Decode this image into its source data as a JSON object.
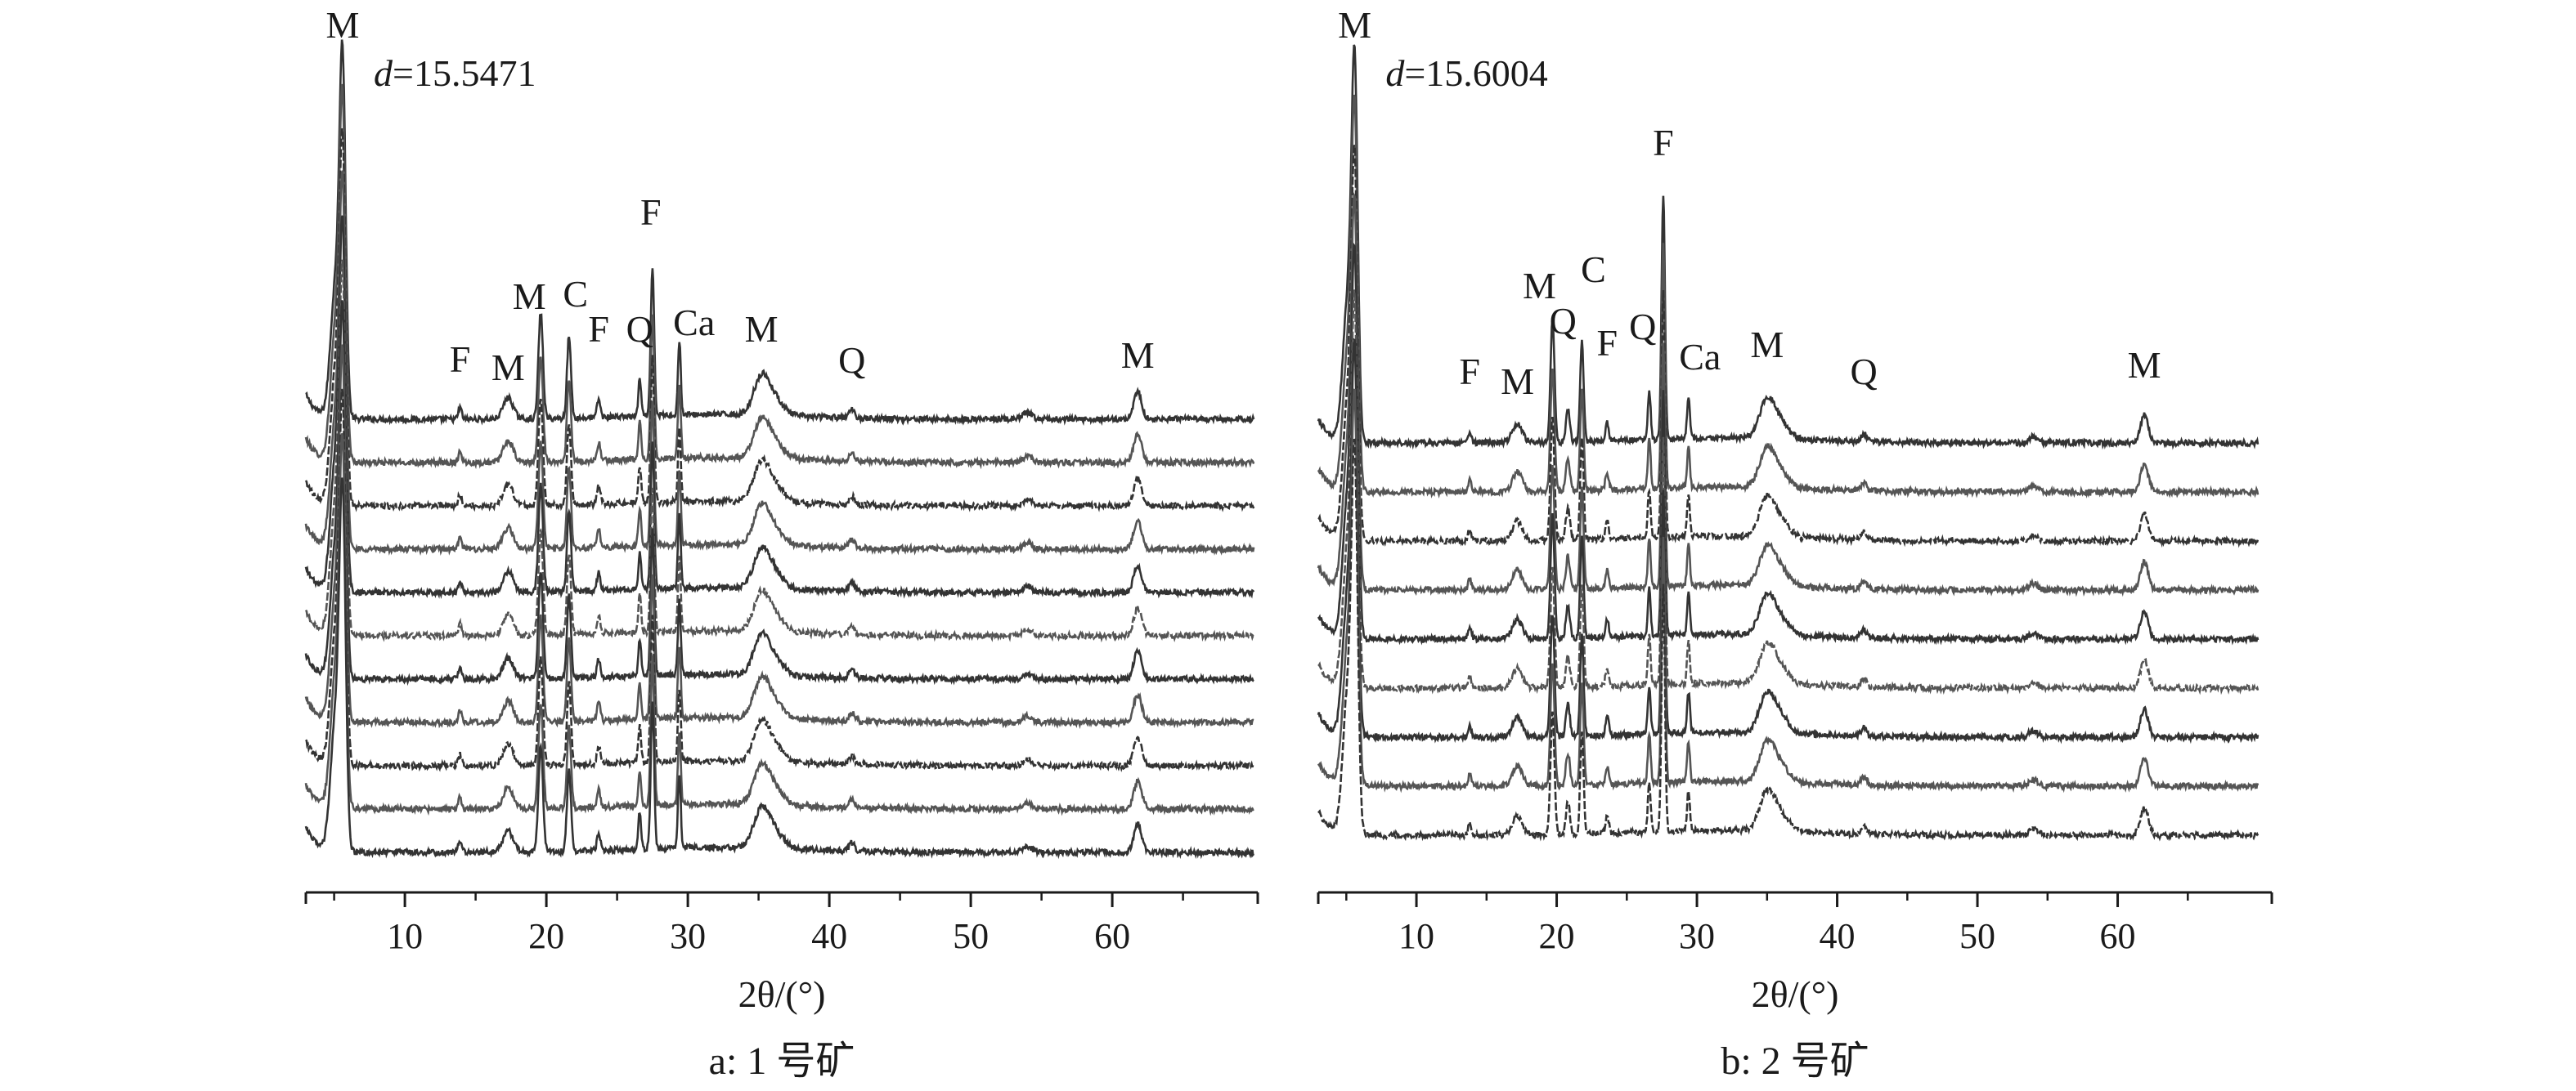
{
  "figure": {
    "panels": [
      {
        "id": "a",
        "caption": "a: 1 号矿",
        "d_label_italic": "d",
        "d_label_value": "=15.5471",
        "xlabel": "2θ/(°)"
      },
      {
        "id": "b",
        "caption": "b: 2 号矿",
        "d_label_italic": "d",
        "d_label_value": "=15.6004",
        "xlabel": "2θ/(°)"
      }
    ]
  },
  "chart_data": [
    {
      "type": "line",
      "panel": "a",
      "caption": "a: 1 号矿",
      "xlabel": "2θ/(°)",
      "xlim": [
        3,
        70
      ],
      "x_ticks": [
        10,
        20,
        30,
        40,
        50,
        60
      ],
      "n_patterns": 11,
      "grid": false,
      "peak_labels": [
        {
          "label": "M",
          "x": 5.6
        },
        {
          "label": "F",
          "x": 13.9
        },
        {
          "label": "M",
          "x": 17.3
        },
        {
          "label": "M",
          "x": 19.6
        },
        {
          "label": "C",
          "x": 21.6
        },
        {
          "label": "F",
          "x": 23.7
        },
        {
          "label": "Q",
          "x": 26.6
        },
        {
          "label": "F",
          "x": 27.5
        },
        {
          "label": "Ca",
          "x": 29.4
        },
        {
          "label": "M",
          "x": 35.2
        },
        {
          "label": "Q",
          "x": 41.6
        },
        {
          "label": "M",
          "x": 61.8
        }
      ],
      "d_spacing": {
        "label": "d",
        "value": "=15.5471"
      }
    },
    {
      "type": "line",
      "panel": "b",
      "caption": "b: 2 号矿",
      "xlabel": "2θ/(°)",
      "xlim": [
        3,
        70
      ],
      "x_ticks": [
        10,
        20,
        30,
        40,
        50,
        60
      ],
      "n_patterns": 9,
      "grid": false,
      "peak_labels": [
        {
          "label": "M",
          "x": 5.6
        },
        {
          "label": "F",
          "x": 13.8
        },
        {
          "label": "M",
          "x": 17.2
        },
        {
          "label": "M",
          "x": 19.7
        },
        {
          "label": "Q",
          "x": 20.8
        },
        {
          "label": "C",
          "x": 21.8
        },
        {
          "label": "F",
          "x": 23.6
        },
        {
          "label": "Q",
          "x": 26.6
        },
        {
          "label": "F",
          "x": 27.6
        },
        {
          "label": "Ca",
          "x": 29.4
        },
        {
          "label": "M",
          "x": 35.0
        },
        {
          "label": "Q",
          "x": 41.9
        },
        {
          "label": "M",
          "x": 61.9
        }
      ],
      "d_spacing": {
        "label": "d",
        "value": "=15.6004"
      }
    }
  ]
}
